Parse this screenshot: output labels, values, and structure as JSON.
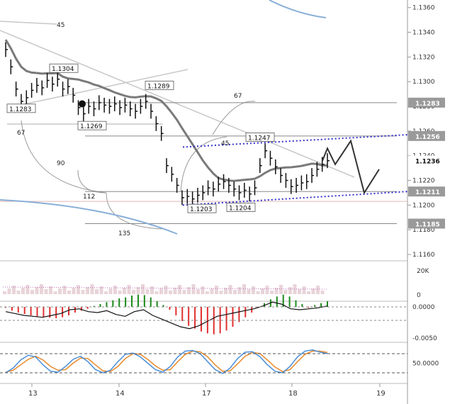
{
  "colors": {
    "bull": "#1b8a1b",
    "bear": "#e03030",
    "price": "#111111",
    "ma": "#7a7a7a",
    "fan": "#c8c8c8",
    "channel": "#3333cc",
    "forecast": "#333333",
    "macd_line": "#111111",
    "stoch_k": "#4a90d9",
    "stoch_d": "#e88a2a",
    "volume": "#d9b8c0"
  },
  "chart_data": {
    "type": "line",
    "price_axis": {
      "ticks": [
        "1.1360",
        "1.1340",
        "1.1320",
        "1.1300",
        "1.1280",
        "1.1260",
        "1.1240",
        "1.1220",
        "1.1200",
        "1.1180",
        "1.1160"
      ],
      "tick_values": [
        1.136,
        1.134,
        1.132,
        1.13,
        1.128,
        1.126,
        1.124,
        1.122,
        1.12,
        1.118,
        1.116
      ],
      "range": [
        1.1156,
        1.1365
      ],
      "level_badges": [
        {
          "label": "1.1283",
          "value": 1.1283,
          "style": "level"
        },
        {
          "label": "1.1256",
          "value": 1.1256,
          "style": "level"
        },
        {
          "label": "1.1236",
          "value": 1.1236,
          "style": "current"
        },
        {
          "label": "1.1211",
          "value": 1.1211,
          "style": "level"
        },
        {
          "label": "1.1185",
          "value": 1.1185,
          "style": "level"
        }
      ]
    },
    "x_axis": {
      "labels": [
        "13",
        "14",
        "17",
        "18",
        "19"
      ]
    },
    "price_labels": [
      {
        "text": "1.1304",
        "value": 1.1304
      },
      {
        "text": "1.1283",
        "value": 1.1283
      },
      {
        "text": "1.1289",
        "value": 1.1289
      },
      {
        "text": "1.1269",
        "value": 1.1269
      },
      {
        "text": "1.1247",
        "value": 1.1247
      },
      {
        "text": "1.1203",
        "value": 1.1203
      },
      {
        "text": "1.1204",
        "value": 1.1204
      }
    ],
    "fan_labels": [
      "45",
      "67",
      "90",
      "112",
      "135",
      "67",
      "45"
    ],
    "close_series": [
      1.1326,
      1.1312,
      1.1294,
      1.1284,
      1.1287,
      1.1293,
      1.1297,
      1.1295,
      1.1301,
      1.1298,
      1.1302,
      1.1294,
      1.1296,
      1.1289,
      1.1279,
      1.1274,
      1.128,
      1.1278,
      1.1283,
      1.1281,
      1.128,
      1.1282,
      1.1279,
      1.1281,
      1.1278,
      1.1276,
      1.128,
      1.1284,
      1.1276,
      1.1266,
      1.1258,
      1.1232,
      1.1225,
      1.1216,
      1.1206,
      1.1207,
      1.1205,
      1.1208,
      1.121,
      1.1214,
      1.1213,
      1.1217,
      1.1219,
      1.1216,
      1.1213,
      1.121,
      1.1212,
      1.1209,
      1.1214,
      1.1232,
      1.1244,
      1.1238,
      1.1231,
      1.1224,
      1.122,
      1.1215,
      1.1216,
      1.1218,
      1.1219,
      1.1224,
      1.1229,
      1.1233,
      1.1236
    ],
    "forecast_path": [
      1.1236,
      1.1246,
      1.1233,
      1.1252,
      1.121,
      1.1229
    ],
    "stoch_axis": {
      "tick": "50.0000"
    },
    "macd_axis": {
      "ticks": [
        "0.0000",
        "-0.0050"
      ]
    },
    "volume_axis": {
      "ticks": [
        "20K",
        "0"
      ]
    },
    "macd_hist": [
      -0.0002,
      -0.0008,
      -0.0012,
      -0.0015,
      -0.0018,
      -0.002,
      -0.0022,
      -0.0023,
      -0.0024,
      -0.0022,
      -0.0018,
      -0.0012,
      -0.0008,
      -0.0004,
      0.0002,
      0.0006,
      0.001,
      0.0014,
      0.0018,
      0.002,
      0.0024,
      0.0026,
      0.0025,
      0.002,
      0.0012,
      0.0004,
      -0.0006,
      -0.0018,
      -0.003,
      -0.004,
      -0.0046,
      -0.0052,
      -0.0056,
      -0.0058,
      -0.0056,
      -0.005,
      -0.0042,
      -0.0032,
      -0.0022,
      -0.0012,
      -0.0002,
      0.0008,
      0.0016,
      0.0022,
      0.0026,
      0.0022,
      0.0014,
      0.0006,
      -0.0002,
      0.0004,
      0.0008,
      0.0012
    ],
    "macd_line": [
      -0.001,
      -0.0014,
      -0.0018,
      -0.002,
      -0.0022,
      -0.0018,
      -0.0014,
      -0.0006,
      -0.0004,
      -0.001,
      -0.0012,
      -0.0008,
      -0.0016,
      -0.002,
      -0.001,
      -0.0006,
      -0.0018,
      -0.0026,
      -0.0034,
      -0.0042,
      -0.0046,
      -0.004,
      -0.003,
      -0.002,
      -0.0016,
      -0.0012,
      -0.0008,
      -0.0004,
      0.0002,
      0.001,
      0.0006,
      -0.0004,
      -0.0006,
      -0.0004,
      -0.0002,
      0.0002
    ],
    "stoch_k": [
      20,
      35,
      60,
      75,
      70,
      45,
      25,
      22,
      40,
      62,
      72,
      55,
      30,
      20,
      28,
      55,
      78,
      82,
      70,
      50,
      30,
      22,
      40,
      70,
      88,
      90,
      80,
      55,
      30,
      18,
      35,
      65,
      85,
      86,
      70,
      45,
      25,
      20,
      40,
      70,
      88,
      92,
      85,
      80
    ],
    "stoch_d": [
      22,
      28,
      45,
      62,
      72,
      60,
      40,
      28,
      30,
      50,
      66,
      65,
      45,
      26,
      24,
      40,
      65,
      80,
      78,
      62,
      42,
      28,
      30,
      55,
      78,
      88,
      86,
      70,
      45,
      25,
      26,
      48,
      72,
      84,
      80,
      60,
      38,
      24,
      30,
      55,
      78,
      88,
      88,
      84
    ]
  }
}
